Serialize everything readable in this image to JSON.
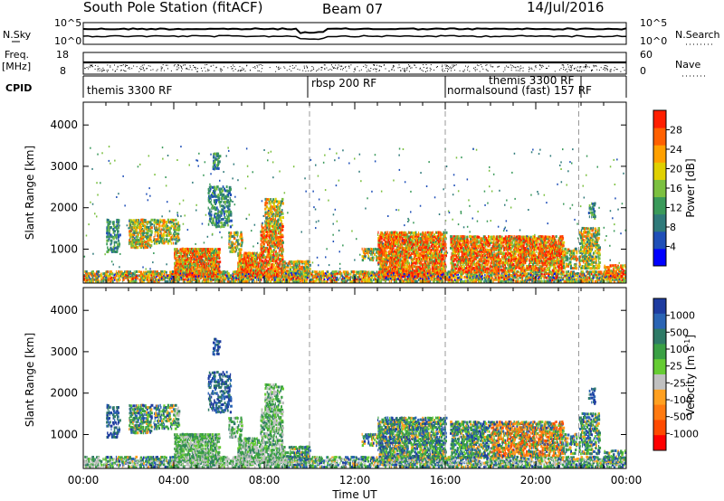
{
  "header": {
    "station": "South Pole Station (fitACF)",
    "beam": "Beam 07",
    "date": "14/Jul/2016"
  },
  "strips": {
    "nsky_label": "N.Sky",
    "nsky_ticks": [
      "10^5",
      "10^0"
    ],
    "nsearch_label": "N.Search",
    "freq_label_1": "Freq.",
    "freq_label_2": "[MHz]",
    "freq_ticks": [
      "18",
      "8"
    ],
    "nave_label": "Nave",
    "nave_ticks": [
      "60",
      "0"
    ],
    "cpid_label": "CPID",
    "cpid_segments": [
      "themis 3300 RF",
      "rbsp 200 RF",
      "normalsound (fast) 157 RF",
      "themis 3300 RF"
    ]
  },
  "colors": {
    "power_scale": [
      "#0000ff",
      "#1f4fb8",
      "#2f7a7a",
      "#3a9a5a",
      "#7cc040",
      "#e0d000",
      "#ffa000",
      "#ff6000",
      "#ff1e00"
    ],
    "velocity_scale": [
      "#1e3ca0",
      "#2a64b4",
      "#2e7a66",
      "#3aa044",
      "#66cc33",
      "#c0c0c0",
      "#ffa020",
      "#ff7a10",
      "#ff4a00",
      "#ff0000"
    ]
  },
  "chart_data": [
    {
      "type": "heatmap",
      "panel": "power",
      "ylabel": "Slant Range [km]",
      "xlim": [
        "00:00",
        "24:00"
      ],
      "ylim": [
        180,
        4550
      ],
      "y_ticks": [
        "1000",
        "2000",
        "3000",
        "4000"
      ],
      "colorbar_label": "Power [dB]",
      "colorbar_ticks": [
        "4",
        "8",
        "12",
        "16",
        "20",
        "24",
        "28"
      ],
      "colorbar_range": [
        0,
        32
      ]
    },
    {
      "type": "heatmap",
      "panel": "velocity",
      "xlabel": "Time UT",
      "ylabel": "Slant Range [km]",
      "xlim": [
        "00:00",
        "24:00"
      ],
      "ylim": [
        180,
        4550
      ],
      "x_ticks": [
        "00:00",
        "04:00",
        "08:00",
        "12:00",
        "16:00",
        "20:00",
        "00:00"
      ],
      "y_ticks": [
        "1000",
        "2000",
        "3000",
        "4000"
      ],
      "colorbar_label": "Velocity [m s",
      "colorbar_label_unit_sup": "-1",
      "colorbar_label_close": "]",
      "colorbar_ticks": [
        "1000",
        "500",
        "100",
        "25",
        "-25",
        "-100",
        "-500",
        "-1000"
      ]
    }
  ]
}
